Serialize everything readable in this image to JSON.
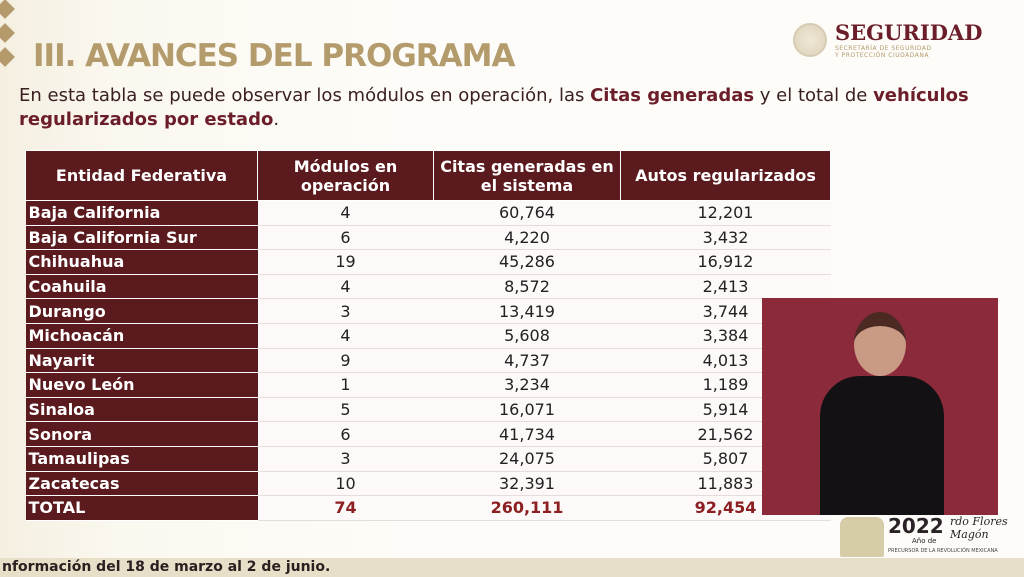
{
  "title": "III. AVANCES DEL PROGRAMA",
  "intro": {
    "t1": "En esta tabla se puede observar los módulos en operación, las ",
    "b1": "Citas generadas",
    "t2": " y el total de ",
    "b2": "vehículos regularizados por estado",
    "t3": "."
  },
  "logo": {
    "name": "SEGURIDAD",
    "sub1": "SECRETARÍA DE SEGURIDAD",
    "sub2": "Y PROTECCIÓN CIUDADANA"
  },
  "table": {
    "headers": [
      "Entidad Federativa",
      "Módulos en operación",
      "Citas generadas en el sistema",
      "Autos regularizados"
    ],
    "rows": [
      [
        "Baja California",
        "4",
        "60,764",
        "12,201"
      ],
      [
        "Baja California Sur",
        "6",
        "4,220",
        "3,432"
      ],
      [
        "Chihuahua",
        "19",
        "45,286",
        "16,912"
      ],
      [
        "Coahuila",
        "4",
        "8,572",
        "2,413"
      ],
      [
        "Durango",
        "3",
        "13,419",
        "3,744"
      ],
      [
        "Michoacán",
        "4",
        "5,608",
        "3,384"
      ],
      [
        "Nayarit",
        "9",
        "4,737",
        "4,013"
      ],
      [
        "Nuevo León",
        "1",
        "3,234",
        "1,189"
      ],
      [
        "Sinaloa",
        "5",
        "16,071",
        "5,914"
      ],
      [
        "Sonora",
        "6",
        "41,734",
        "21,562"
      ],
      [
        "Tamaulipas",
        "3",
        "24,075",
        "5,807"
      ],
      [
        "Zacatecas",
        "10",
        "32,391",
        "11,883"
      ],
      [
        "TOTAL",
        "74",
        "260,111",
        "92,454"
      ]
    ]
  },
  "badge": {
    "year": "2022",
    "of": "Año de",
    "name1": "rdo Flores",
    "name2": "Magón",
    "sub": "PRECURSOR DE LA REVOLUCIÓN MEXICANA"
  },
  "footer": "nformación del 18 de marzo al 2 de junio."
}
